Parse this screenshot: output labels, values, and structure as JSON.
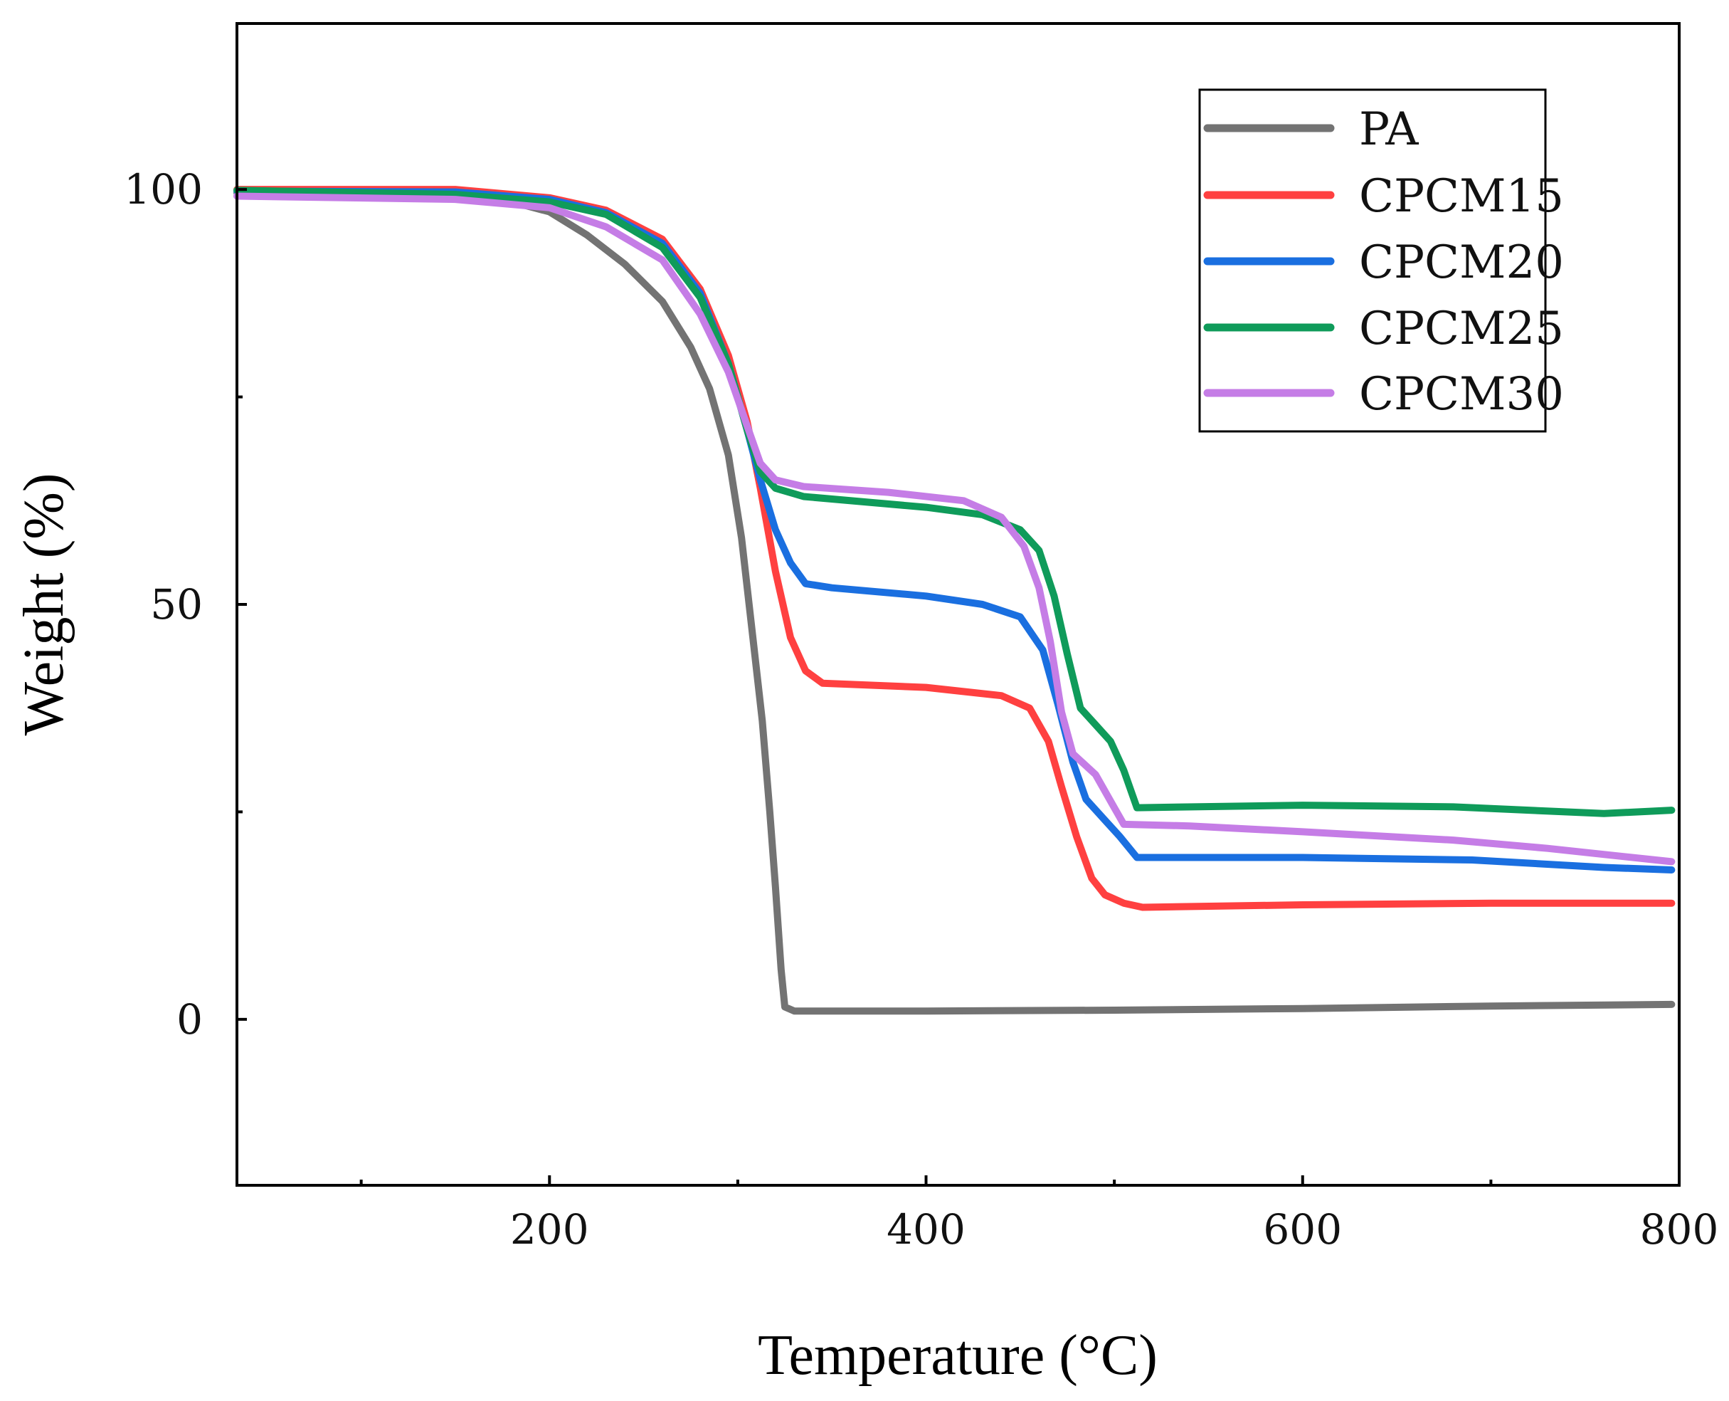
{
  "chart_data": {
    "type": "line",
    "title": "",
    "xlabel": "Temperature (°C)",
    "ylabel": "Weight (%)",
    "xlim": [
      34,
      800
    ],
    "ylim": [
      -20,
      120
    ],
    "xticks": [
      200,
      400,
      600,
      800
    ],
    "xminor": [
      100,
      300,
      500,
      700
    ],
    "yticks": [
      0,
      50,
      100
    ],
    "yminor": [
      25,
      75
    ],
    "grid": false,
    "legend_position": "top-right",
    "series": [
      {
        "name": "PA",
        "color": "#737373",
        "points": [
          [
            34,
            99.6
          ],
          [
            100,
            99.4
          ],
          [
            150,
            99.0
          ],
          [
            180,
            98.5
          ],
          [
            200,
            97.3
          ],
          [
            220,
            94.5
          ],
          [
            240,
            91.0
          ],
          [
            260,
            86.5
          ],
          [
            275,
            81.0
          ],
          [
            285,
            76.0
          ],
          [
            295,
            68.0
          ],
          [
            302,
            58.0
          ],
          [
            308,
            46.0
          ],
          [
            313,
            36.0
          ],
          [
            317,
            25.0
          ],
          [
            320,
            16.0
          ],
          [
            323,
            6.0
          ],
          [
            325,
            1.5
          ],
          [
            330,
            1.0
          ],
          [
            400,
            1.0
          ],
          [
            500,
            1.1
          ],
          [
            600,
            1.3
          ],
          [
            700,
            1.6
          ],
          [
            796,
            1.8
          ]
        ]
      },
      {
        "name": "CPCM15",
        "color": "#ff4040",
        "points": [
          [
            34,
            100.0
          ],
          [
            150,
            100.0
          ],
          [
            200,
            99.0
          ],
          [
            230,
            97.5
          ],
          [
            260,
            94.0
          ],
          [
            280,
            88.0
          ],
          [
            295,
            80.0
          ],
          [
            305,
            72.0
          ],
          [
            312,
            64.0
          ],
          [
            320,
            54.0
          ],
          [
            328,
            46.0
          ],
          [
            336,
            42.0
          ],
          [
            345,
            40.5
          ],
          [
            400,
            40.0
          ],
          [
            440,
            39.0
          ],
          [
            455,
            37.5
          ],
          [
            465,
            33.5
          ],
          [
            472,
            28.0
          ],
          [
            480,
            22.0
          ],
          [
            488,
            17.0
          ],
          [
            495,
            15.0
          ],
          [
            505,
            14.0
          ],
          [
            515,
            13.5
          ],
          [
            600,
            13.8
          ],
          [
            700,
            14.0
          ],
          [
            796,
            14.0
          ]
        ]
      },
      {
        "name": "CPCM20",
        "color": "#1a6fe0",
        "points": [
          [
            34,
            99.8
          ],
          [
            150,
            99.7
          ],
          [
            200,
            98.8
          ],
          [
            230,
            97.2
          ],
          [
            260,
            93.5
          ],
          [
            280,
            87.5
          ],
          [
            295,
            79.0
          ],
          [
            305,
            71.0
          ],
          [
            312,
            65.0
          ],
          [
            320,
            59.0
          ],
          [
            328,
            55.0
          ],
          [
            336,
            52.5
          ],
          [
            350,
            52.0
          ],
          [
            400,
            51.0
          ],
          [
            430,
            50.0
          ],
          [
            450,
            48.5
          ],
          [
            462,
            44.5
          ],
          [
            470,
            38.0
          ],
          [
            478,
            31.0
          ],
          [
            485,
            26.5
          ],
          [
            495,
            24.0
          ],
          [
            503,
            22.0
          ],
          [
            512,
            19.5
          ],
          [
            600,
            19.5
          ],
          [
            690,
            19.2
          ],
          [
            760,
            18.3
          ],
          [
            796,
            18.0
          ]
        ]
      },
      {
        "name": "CPCM25",
        "color": "#0f9b5a",
        "points": [
          [
            34,
            99.9
          ],
          [
            150,
            99.4
          ],
          [
            200,
            98.5
          ],
          [
            230,
            97.0
          ],
          [
            260,
            93.0
          ],
          [
            280,
            87.0
          ],
          [
            295,
            79.0
          ],
          [
            305,
            71.0
          ],
          [
            312,
            66.0
          ],
          [
            320,
            64.0
          ],
          [
            335,
            63.0
          ],
          [
            400,
            61.7
          ],
          [
            430,
            60.8
          ],
          [
            450,
            59.0
          ],
          [
            460,
            56.5
          ],
          [
            468,
            51.0
          ],
          [
            475,
            44.0
          ],
          [
            482,
            37.5
          ],
          [
            490,
            35.5
          ],
          [
            498,
            33.5
          ],
          [
            505,
            30.0
          ],
          [
            512,
            25.5
          ],
          [
            600,
            25.8
          ],
          [
            680,
            25.6
          ],
          [
            760,
            24.8
          ],
          [
            796,
            25.2
          ]
        ]
      },
      {
        "name": "CPCM30",
        "color": "#c57de6",
        "points": [
          [
            34,
            99.2
          ],
          [
            150,
            98.8
          ],
          [
            200,
            97.8
          ],
          [
            230,
            95.5
          ],
          [
            260,
            91.5
          ],
          [
            280,
            85.0
          ],
          [
            295,
            78.0
          ],
          [
            305,
            71.5
          ],
          [
            312,
            67.0
          ],
          [
            320,
            65.0
          ],
          [
            335,
            64.2
          ],
          [
            380,
            63.5
          ],
          [
            420,
            62.5
          ],
          [
            440,
            60.5
          ],
          [
            452,
            57.0
          ],
          [
            460,
            52.0
          ],
          [
            466,
            45.5
          ],
          [
            472,
            37.0
          ],
          [
            478,
            32.0
          ],
          [
            490,
            29.5
          ],
          [
            500,
            25.5
          ],
          [
            505,
            23.5
          ],
          [
            540,
            23.3
          ],
          [
            600,
            22.6
          ],
          [
            680,
            21.6
          ],
          [
            730,
            20.6
          ],
          [
            796,
            19.0
          ]
        ]
      }
    ]
  }
}
